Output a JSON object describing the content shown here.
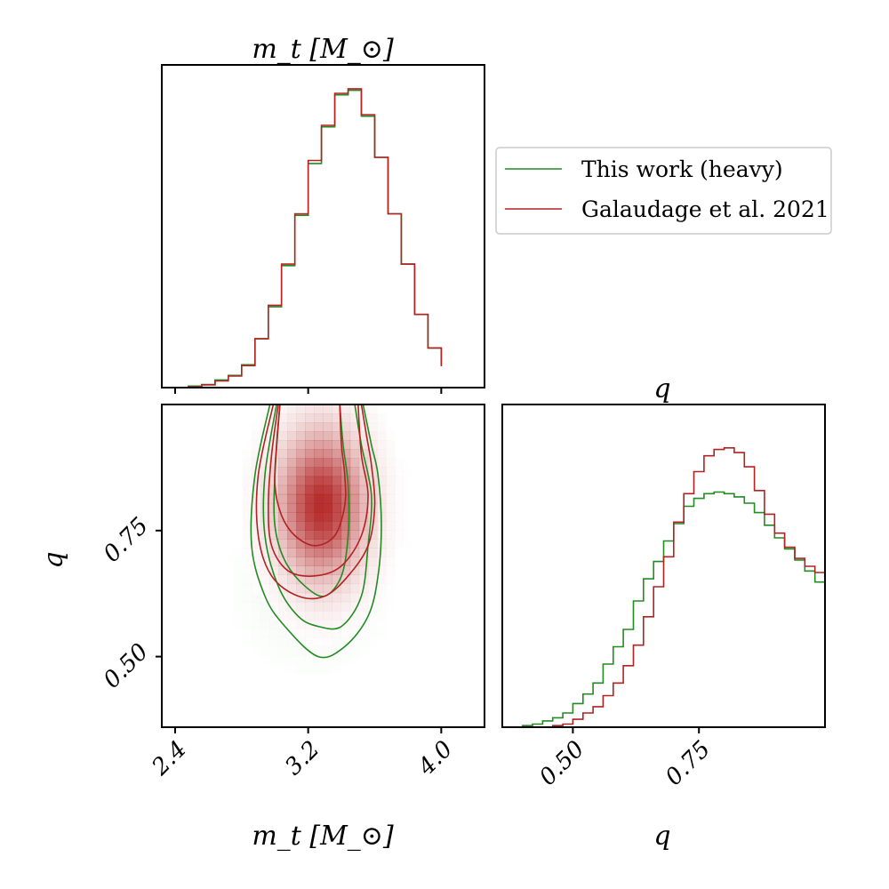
{
  "colors": {
    "green": "#228b22",
    "red": "#b22222",
    "axes": "#000000",
    "legend_border": "#cccccc"
  },
  "legend": {
    "placement": "top-right",
    "entries": [
      "This work (heavy)",
      "Galaudage et al. 2021"
    ]
  },
  "chart_data": [
    {
      "type": "histogram",
      "panel": "mt-marginal",
      "title": "m_t [M_⊙]",
      "xlim": [
        2.32,
        4.26
      ],
      "x_edges": [
        2.48,
        2.56,
        2.64,
        2.72,
        2.8,
        2.88,
        2.96,
        3.04,
        3.12,
        3.2,
        3.28,
        3.36,
        3.44,
        3.52,
        3.6,
        3.68,
        3.76,
        3.84,
        3.92,
        4.0
      ],
      "series": [
        {
          "name": "This work (heavy)",
          "color": "green",
          "values": [
            0.005,
            0.01,
            0.025,
            0.04,
            0.075,
            0.16,
            0.265,
            0.4,
            0.565,
            0.735,
            0.855,
            0.96,
            0.975,
            0.89,
            0.755,
            0.57,
            0.405,
            0.24,
            0.13,
            0.075
          ]
        },
        {
          "name": "Galaudage et al. 2021",
          "color": "red",
          "values": [
            0.003,
            0.009,
            0.022,
            0.038,
            0.072,
            0.16,
            0.27,
            0.405,
            0.57,
            0.745,
            0.86,
            0.965,
            0.98,
            0.895,
            0.755,
            0.57,
            0.405,
            0.24,
            0.13,
            0.07
          ]
        }
      ]
    },
    {
      "type": "contour",
      "panel": "joint",
      "xlabel": "m_t [M_⊙]",
      "ylabel": "q",
      "xlim": [
        2.32,
        4.26
      ],
      "ylim": [
        0.36,
        1.0
      ],
      "x_ticks": [
        "2.4",
        "3.2",
        "4.0"
      ],
      "y_ticks": [
        "0.50",
        "0.75"
      ],
      "heatmap_peak": {
        "x": 3.28,
        "y": 0.8
      },
      "series": [
        {
          "name": "This work (heavy)",
          "color": "green",
          "levels": [
            [
              [
                2.97,
                1.0
              ],
              [
                2.88,
                0.86
              ],
              [
                2.86,
                0.72
              ],
              [
                2.94,
                0.62
              ],
              [
                3.06,
                0.56
              ],
              [
                3.26,
                0.5
              ],
              [
                3.42,
                0.52
              ],
              [
                3.56,
                0.58
              ],
              [
                3.62,
                0.66
              ],
              [
                3.64,
                0.76
              ],
              [
                3.62,
                0.86
              ],
              [
                3.58,
                0.92
              ],
              [
                3.53,
                1.0
              ]
            ],
            [
              [
                3.01,
                1.0
              ],
              [
                2.94,
                0.86
              ],
              [
                2.94,
                0.74
              ],
              [
                3.02,
                0.64
              ],
              [
                3.14,
                0.58
              ],
              [
                3.26,
                0.56
              ],
              [
                3.4,
                0.56
              ],
              [
                3.52,
                0.62
              ],
              [
                3.56,
                0.72
              ],
              [
                3.58,
                0.82
              ],
              [
                3.52,
                0.92
              ],
              [
                3.48,
                1.0
              ]
            ],
            [
              [
                3.03,
                1.0
              ],
              [
                3.0,
                0.86
              ],
              [
                3.0,
                0.76
              ],
              [
                3.06,
                0.69
              ],
              [
                3.18,
                0.64
              ],
              [
                3.3,
                0.62
              ],
              [
                3.4,
                0.66
              ],
              [
                3.44,
                0.74
              ],
              [
                3.44,
                0.84
              ],
              [
                3.41,
                0.92
              ],
              [
                3.39,
                1.0
              ]
            ]
          ]
        },
        {
          "name": "Galaudage et al. 2021",
          "color": "red",
          "levels": [
            [
              [
                2.99,
                1.0
              ],
              [
                2.9,
                0.86
              ],
              [
                2.9,
                0.74
              ],
              [
                2.98,
                0.66
              ],
              [
                3.14,
                0.62
              ],
              [
                3.3,
                0.62
              ],
              [
                3.44,
                0.66
              ],
              [
                3.56,
                0.72
              ],
              [
                3.6,
                0.8
              ],
              [
                3.58,
                0.88
              ],
              [
                3.55,
                0.94
              ],
              [
                3.52,
                1.0
              ]
            ],
            [
              [
                3.02,
                1.0
              ],
              [
                2.98,
                0.9
              ],
              [
                2.96,
                0.8
              ],
              [
                2.98,
                0.72
              ],
              [
                3.08,
                0.67
              ],
              [
                3.24,
                0.66
              ],
              [
                3.4,
                0.68
              ],
              [
                3.52,
                0.74
              ],
              [
                3.56,
                0.82
              ],
              [
                3.52,
                0.9
              ],
              [
                3.5,
                1.0
              ]
            ],
            [
              [
                3.03,
                1.0
              ],
              [
                3.01,
                0.92
              ],
              [
                3.0,
                0.84
              ],
              [
                3.04,
                0.78
              ],
              [
                3.12,
                0.74
              ],
              [
                3.24,
                0.72
              ],
              [
                3.36,
                0.74
              ],
              [
                3.42,
                0.8
              ],
              [
                3.42,
                0.86
              ],
              [
                3.4,
                0.92
              ],
              [
                3.39,
                1.0
              ]
            ]
          ]
        }
      ]
    },
    {
      "type": "histogram",
      "panel": "q-marginal",
      "title": "q",
      "xlabel": "q",
      "xlim": [
        0.36,
        1.0
      ],
      "x_ticks": [
        "0.50",
        "0.75"
      ],
      "x_edges": [
        0.4,
        0.42,
        0.44,
        0.46,
        0.48,
        0.5,
        0.52,
        0.54,
        0.56,
        0.58,
        0.6,
        0.62,
        0.64,
        0.66,
        0.68,
        0.7,
        0.72,
        0.74,
        0.76,
        0.78,
        0.8,
        0.82,
        0.84,
        0.86,
        0.88,
        0.9,
        0.92,
        0.94,
        0.96,
        0.98,
        1.0
      ],
      "series": [
        {
          "name": "This work (heavy)",
          "color": "green",
          "values": [
            0.005,
            0.01,
            0.02,
            0.03,
            0.045,
            0.075,
            0.105,
            0.14,
            0.2,
            0.255,
            0.31,
            0.4,
            0.47,
            0.525,
            0.59,
            0.645,
            0.7,
            0.725,
            0.74,
            0.745,
            0.74,
            0.73,
            0.71,
            0.68,
            0.64,
            0.6,
            0.565,
            0.53,
            0.495,
            0.46
          ]
        },
        {
          "name": "Galaudage et al. 2021",
          "color": "red",
          "values": [
            0.0,
            0.0,
            0.0,
            0.005,
            0.01,
            0.025,
            0.045,
            0.065,
            0.1,
            0.14,
            0.195,
            0.26,
            0.35,
            0.445,
            0.54,
            0.65,
            0.74,
            0.81,
            0.86,
            0.88,
            0.885,
            0.87,
            0.825,
            0.75,
            0.675,
            0.615,
            0.57,
            0.535,
            0.51,
            0.49
          ]
        }
      ]
    }
  ]
}
